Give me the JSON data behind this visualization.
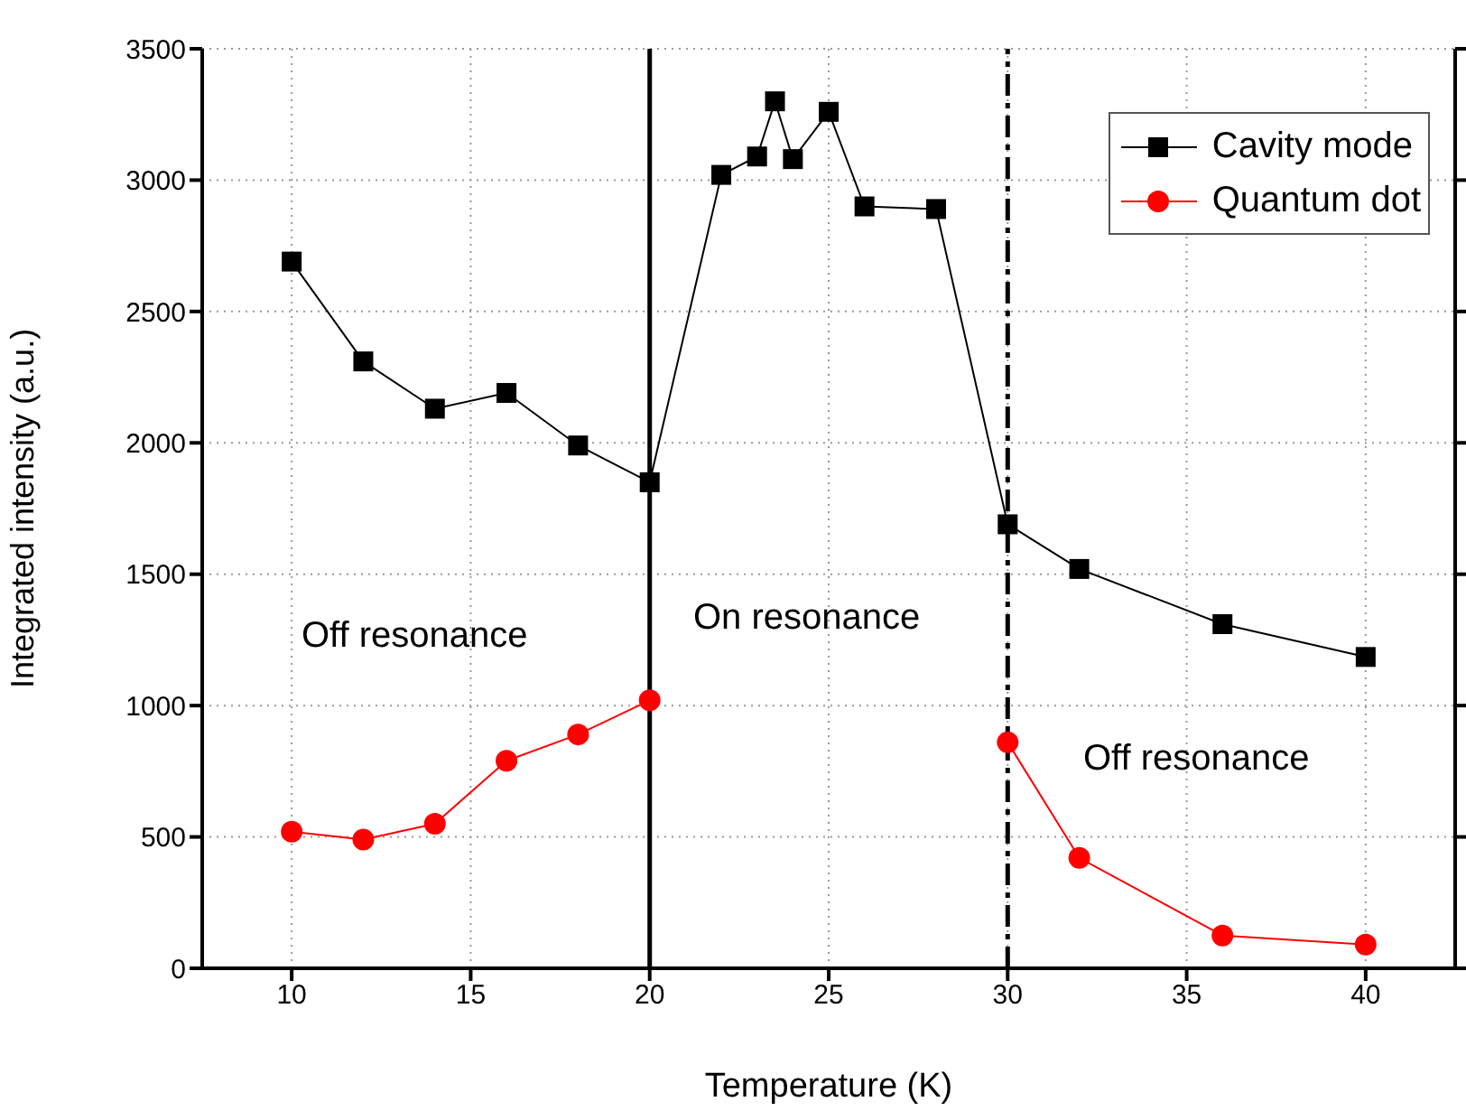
{
  "chart_data": {
    "type": "line",
    "xlabel": "Temperature (K)",
    "ylabel": "Integrated intensity (a.u.)",
    "xlim": [
      7.5,
      42.5
    ],
    "xticks": [
      10,
      15,
      20,
      25,
      30,
      35,
      40
    ],
    "ylim": [
      0,
      3500
    ],
    "yticks": [
      0,
      500,
      1000,
      1500,
      2000,
      2500,
      3000,
      3500
    ],
    "grid": true,
    "legend": "top right",
    "line_style": "solid",
    "series": [
      {
        "name": "Cavity mode",
        "color": "#000000",
        "marker": "square",
        "x": [
          10,
          12,
          14,
          16,
          18,
          20,
          22,
          23,
          23.5,
          24,
          25,
          26,
          28,
          30,
          32,
          36,
          40
        ],
        "values": [
          2690,
          2310,
          2130,
          2190,
          1990,
          1850,
          3020,
          3090,
          3300,
          3080,
          3260,
          2900,
          2890,
          1690,
          1520,
          1310,
          1185
        ]
      },
      {
        "name": "Quantum dot",
        "color": "#ff0000",
        "marker": "circle",
        "x": [
          10,
          12,
          14,
          16,
          18,
          20,
          25,
          30,
          32,
          36,
          40
        ],
        "values": [
          520,
          490,
          550,
          790,
          890,
          1020,
          null,
          860,
          420,
          125,
          90
        ]
      }
    ],
    "ref_lines": [
      {
        "axis": "x",
        "value": 20,
        "color": "#000000",
        "line_style": "solid"
      },
      {
        "axis": "x",
        "value": 30,
        "color": "#000000",
        "line_style": "dashdot"
      }
    ],
    "annotations": [
      "Off resonance",
      "On resonance",
      "Off resonance"
    ]
  }
}
